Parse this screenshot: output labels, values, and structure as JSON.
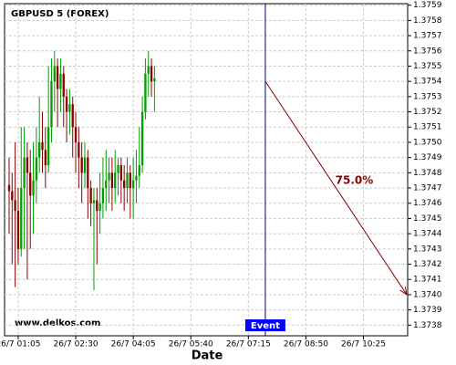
{
  "chart_data": {
    "type": "candlestick",
    "title": "GBPUSD 5 (FOREX)",
    "x_label": "Date",
    "watermark": "www.delkos.com",
    "x": [
      -3,
      -2,
      -1,
      0,
      1,
      2,
      3,
      4,
      5,
      6,
      7,
      8,
      9,
      10,
      11,
      12,
      13,
      14,
      15,
      16,
      17,
      18,
      19,
      20,
      21,
      22,
      23,
      24,
      25,
      26,
      27,
      28,
      29,
      30,
      31,
      32,
      33,
      34,
      35,
      36,
      37,
      38,
      39,
      40,
      41,
      42,
      43,
      44,
      45
    ],
    "open": [
      1.37472,
      1.37468,
      1.37462,
      1.37455,
      1.3743,
      1.3747,
      1.3749,
      1.3748,
      1.37465,
      1.37475,
      1.3749,
      1.375,
      1.37495,
      1.37485,
      1.3751,
      1.3754,
      1.3755,
      1.37535,
      1.37545,
      1.3753,
      1.3752,
      1.37525,
      1.3751,
      1.375,
      1.3749,
      1.3748,
      1.3749,
      1.3747,
      1.3746,
      1.37462,
      1.37455,
      1.3746,
      1.3747,
      1.37475,
      1.3748,
      1.3747,
      1.3748,
      1.37485,
      1.37475,
      1.3747,
      1.3748,
      1.3747,
      1.37475,
      1.37478,
      1.37485,
      1.3752,
      1.37545,
      1.3755,
      1.3754
    ],
    "high": [
      1.3749,
      1.3748,
      1.375,
      1.3747,
      1.3751,
      1.3751,
      1.375,
      1.37495,
      1.375,
      1.3751,
      1.3753,
      1.3752,
      1.3751,
      1.3755,
      1.37555,
      1.3756,
      1.37555,
      1.37555,
      1.3755,
      1.37535,
      1.37535,
      1.3753,
      1.3752,
      1.3751,
      1.375,
      1.375,
      1.37495,
      1.37475,
      1.3747,
      1.3747,
      1.3748,
      1.3749,
      1.37495,
      1.3749,
      1.3749,
      1.37495,
      1.3749,
      1.3749,
      1.37485,
      1.3749,
      1.37485,
      1.3749,
      1.37495,
      1.3751,
      1.3753,
      1.37555,
      1.3756,
      1.37555,
      1.3755
    ],
    "low": [
      1.3744,
      1.3742,
      1.37405,
      1.3742,
      1.37425,
      1.3743,
      1.3741,
      1.3743,
      1.3744,
      1.3746,
      1.3748,
      1.3748,
      1.3747,
      1.3748,
      1.375,
      1.3752,
      1.3751,
      1.3752,
      1.3751,
      1.375,
      1.37505,
      1.3749,
      1.3748,
      1.3747,
      1.3746,
      1.3747,
      1.3745,
      1.37445,
      1.37403,
      1.3742,
      1.3744,
      1.3745,
      1.37455,
      1.3746,
      1.37455,
      1.3746,
      1.37465,
      1.3746,
      1.37455,
      1.3746,
      1.3745,
      1.3745,
      1.3746,
      1.3747,
      1.3748,
      1.37515,
      1.3753,
      1.3753,
      1.3752
    ],
    "close": [
      1.37468,
      1.37462,
      1.37455,
      1.3743,
      1.3747,
      1.3749,
      1.3748,
      1.37465,
      1.37475,
      1.3749,
      1.375,
      1.37495,
      1.37485,
      1.3751,
      1.3754,
      1.3755,
      1.37535,
      1.37545,
      1.3753,
      1.3752,
      1.37525,
      1.3751,
      1.375,
      1.3749,
      1.3748,
      1.3749,
      1.3747,
      1.3746,
      1.37462,
      1.37455,
      1.3746,
      1.3747,
      1.37475,
      1.3748,
      1.3747,
      1.3748,
      1.37485,
      1.37475,
      1.3747,
      1.3748,
      1.3747,
      1.37475,
      1.37478,
      1.37485,
      1.3752,
      1.37545,
      1.3755,
      1.3754,
      1.37542
    ],
    "up_color": "#00a000",
    "down_color": "#8b0000",
    "xlim": [
      -4.5,
      128.6
    ],
    "ylim": [
      1.37373,
      1.37591
    ],
    "xticks": [
      {
        "value": 0,
        "label": "26/7 01:05"
      },
      {
        "value": 19,
        "label": "26/7 02:30"
      },
      {
        "value": 38,
        "label": "26/7 04:05"
      },
      {
        "value": 57,
        "label": "26/7 05:40"
      },
      {
        "value": 76,
        "label": "26/7 07:15"
      },
      {
        "value": 95,
        "label": "26/7 08:50"
      },
      {
        "value": 114,
        "label": "26/7 10:25"
      }
    ],
    "yticks": [
      1.3738,
      1.3739,
      {
        "value": 1.374,
        "label": "1.3740"
      },
      1.3741,
      1.3742,
      1.3743,
      1.3744,
      1.3745,
      1.3746,
      1.3747,
      1.3748,
      1.3749,
      {
        "value": 1.375,
        "label": "1.3750"
      },
      1.3751,
      1.3752,
      1.3753,
      1.3754,
      1.3755,
      1.3756,
      1.3757,
      1.3758,
      1.3759
    ],
    "grid": true,
    "event": {
      "label": "Event",
      "x": 81.6,
      "color": "#000080"
    },
    "projection": {
      "label": "75.0%",
      "x": [
        81.6,
        128.3
      ],
      "y": [
        1.3754,
        1.374
      ],
      "color": "#8b0000"
    }
  }
}
